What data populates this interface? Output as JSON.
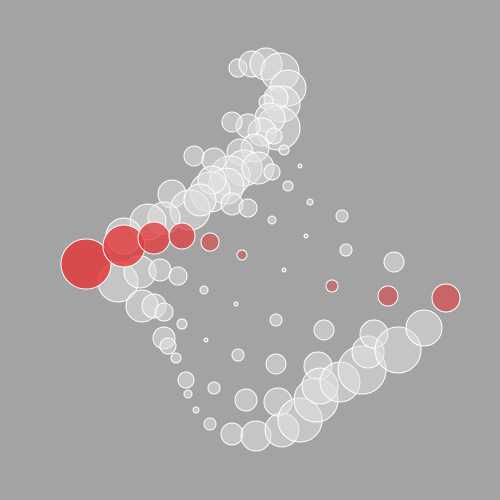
{
  "canvas": {
    "background": "#a3a3a3"
  },
  "palette": {
    "white_fill": "#e1e1e1",
    "outline": "#ffffff",
    "red_fill": "#e23c3c"
  }
}
